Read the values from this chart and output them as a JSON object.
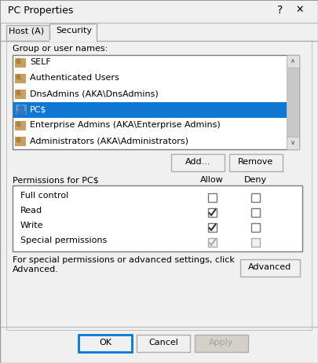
{
  "title": "PC Properties",
  "tab1": "Host (A)",
  "tab2": "Security",
  "group_label": "Group or user names:",
  "users": [
    "SELF",
    "Authenticated Users",
    "DnsAdmins (AKA\\DnsAdmins)",
    "PC$",
    "Enterprise Admins (AKA\\Enterprise Admins)",
    "Administrators (AKA\\Administrators)"
  ],
  "selected_user_index": 3,
  "selected_bg": "#1177d4",
  "selected_text": "#ffffff",
  "permissions_label": "Permissions for PC$",
  "allow_label": "Allow",
  "deny_label": "Deny",
  "permissions": [
    {
      "name": "Full control",
      "allow": false,
      "deny": false,
      "grayed": false
    },
    {
      "name": "Read",
      "allow": true,
      "deny": false,
      "grayed": false
    },
    {
      "name": "Write",
      "allow": true,
      "deny": false,
      "grayed": false
    },
    {
      "name": "Special permissions",
      "allow": true,
      "deny": false,
      "grayed": true
    }
  ],
  "footer_text": "For special permissions or advanced settings, click\nAdvanced.",
  "btn_add": "Add...",
  "btn_remove": "Remove",
  "btn_advanced": "Advanced",
  "btn_ok": "OK",
  "btn_cancel": "Cancel",
  "btn_apply": "Apply",
  "dialog_bg": "#f0f0f0",
  "listbox_bg": "#ffffff",
  "border_dark": "#7a7a7a",
  "border_light": "#adadad",
  "ok_border": "#0078d7",
  "scrollbar_bg": "#c8c8c8",
  "apply_bg": "#d4d0c8",
  "apply_text": "#a0a0a0"
}
